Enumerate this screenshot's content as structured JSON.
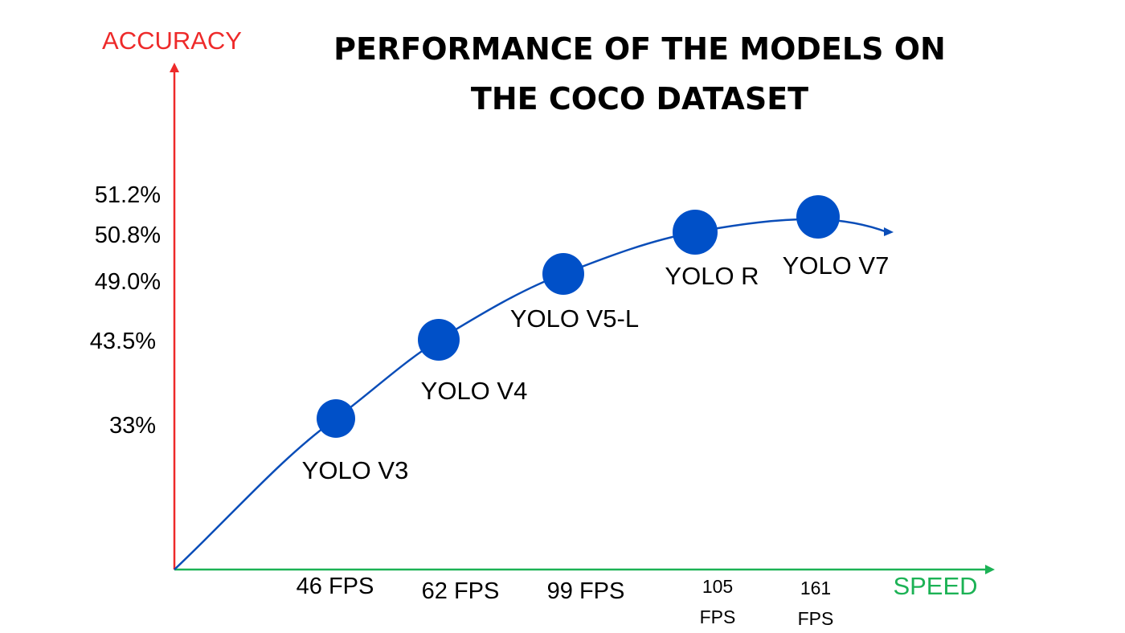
{
  "chart_data": {
    "type": "line",
    "title_lines": [
      "PERFORMANCE OF THE MODELS ON",
      "THE COCO DATASET"
    ],
    "xlabel": "SPEED",
    "ylabel": "ACCURACY",
    "colors": {
      "y_axis": "#ee2a2a",
      "x_axis": "#1cb255",
      "curve": "#0a4db8",
      "points": "#0050c8"
    },
    "y_ticks": [
      "51.2%",
      "50.8%",
      "49.0%",
      "43.5%",
      "33%"
    ],
    "x_ticks": [
      {
        "lines": [
          "46 FPS"
        ]
      },
      {
        "lines": [
          "62 FPS"
        ]
      },
      {
        "lines": [
          "99 FPS"
        ]
      },
      {
        "lines": [
          "105",
          "FPS"
        ]
      },
      {
        "lines": [
          "161",
          "FPS"
        ]
      }
    ],
    "series": [
      {
        "points": [
          {
            "label": "YOLO V3",
            "speed_fps": 46,
            "accuracy_pct": 33.0
          },
          {
            "label": "YOLO V4",
            "speed_fps": 62,
            "accuracy_pct": 43.5
          },
          {
            "label": "YOLO V5-L",
            "speed_fps": 99,
            "accuracy_pct": 49.0
          },
          {
            "label": "YOLO R",
            "speed_fps": 105,
            "accuracy_pct": 50.8
          },
          {
            "label": "YOLO V7",
            "speed_fps": 161,
            "accuracy_pct": 51.2
          }
        ]
      }
    ],
    "grid": false
  }
}
